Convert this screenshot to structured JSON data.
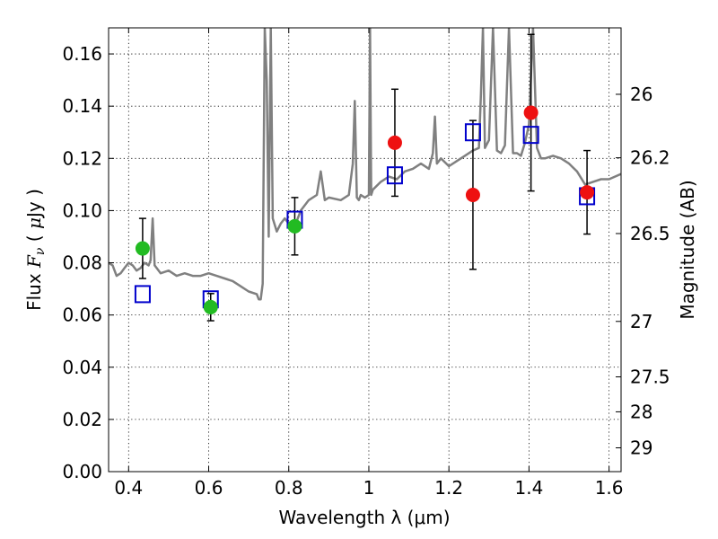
{
  "chart_data": {
    "type": "scatter",
    "title": "",
    "xlabel": "Wavelength  λ (μm)",
    "ylabel_parts": [
      "Flux  ",
      "F",
      "ν",
      "  ( ",
      "μ",
      "Jy )"
    ],
    "y2label": "Magnitude (AB)",
    "xlim": [
      0.35,
      1.63
    ],
    "ylim": [
      0.0,
      0.17
    ],
    "grid": true,
    "x_ticks": [
      {
        "value": 0.4,
        "label": "0.4"
      },
      {
        "value": 0.6,
        "label": "0.6"
      },
      {
        "value": 0.8,
        "label": "0.8"
      },
      {
        "value": 1.0,
        "label": "1"
      },
      {
        "value": 1.2,
        "label": "1.2"
      },
      {
        "value": 1.4,
        "label": "1.4"
      },
      {
        "value": 1.6,
        "label": "1.6"
      }
    ],
    "y_ticks": [
      {
        "value": 0.0,
        "label": "0.00"
      },
      {
        "value": 0.02,
        "label": "0.02"
      },
      {
        "value": 0.04,
        "label": "0.04"
      },
      {
        "value": 0.06,
        "label": "0.06"
      },
      {
        "value": 0.08,
        "label": "0.08"
      },
      {
        "value": 0.1,
        "label": "0.10"
      },
      {
        "value": 0.12,
        "label": "0.12"
      },
      {
        "value": 0.14,
        "label": "0.14"
      },
      {
        "value": 0.16,
        "label": "0.16"
      }
    ],
    "y2_ticks": [
      {
        "value": 26.0,
        "label": "26"
      },
      {
        "value": 26.2,
        "label": "26.2"
      },
      {
        "value": 26.5,
        "label": "26.5"
      },
      {
        "value": 27.0,
        "label": "27"
      },
      {
        "value": 27.5,
        "label": "27.5"
      },
      {
        "value": 28.0,
        "label": "28"
      },
      {
        "value": 29.0,
        "label": "29"
      }
    ],
    "colors": {
      "spectrum": "#808080",
      "observed_green": "#22bb22",
      "observed_red": "#ee1111",
      "model": "#0000cc",
      "errorbar": "#000000"
    },
    "spectrum": {
      "x": [
        0.35,
        0.36,
        0.37,
        0.38,
        0.39,
        0.4,
        0.41,
        0.42,
        0.43,
        0.44,
        0.45,
        0.455,
        0.46,
        0.465,
        0.47,
        0.48,
        0.5,
        0.52,
        0.54,
        0.56,
        0.58,
        0.6,
        0.62,
        0.64,
        0.66,
        0.68,
        0.7,
        0.72,
        0.725,
        0.73,
        0.735,
        0.74,
        0.745,
        0.75,
        0.755,
        0.76,
        0.77,
        0.78,
        0.79,
        0.8,
        0.81,
        0.82,
        0.83,
        0.85,
        0.87,
        0.88,
        0.89,
        0.9,
        0.93,
        0.95,
        0.96,
        0.965,
        0.97,
        0.975,
        0.98,
        0.99,
        1.0,
        1.003,
        1.006,
        1.01,
        1.03,
        1.05,
        1.07,
        1.09,
        1.11,
        1.13,
        1.15,
        1.16,
        1.165,
        1.17,
        1.18,
        1.2,
        1.22,
        1.24,
        1.26,
        1.275,
        1.28,
        1.285,
        1.29,
        1.3,
        1.31,
        1.32,
        1.33,
        1.34,
        1.35,
        1.36,
        1.37,
        1.38,
        1.39,
        1.4,
        1.41,
        1.42,
        1.43,
        1.44,
        1.46,
        1.48,
        1.5,
        1.52,
        1.54,
        1.56,
        1.58,
        1.6,
        1.63
      ],
      "y": [
        0.08,
        0.079,
        0.075,
        0.076,
        0.078,
        0.08,
        0.079,
        0.077,
        0.078,
        0.08,
        0.079,
        0.081,
        0.097,
        0.079,
        0.078,
        0.076,
        0.077,
        0.075,
        0.076,
        0.075,
        0.075,
        0.076,
        0.075,
        0.074,
        0.073,
        0.071,
        0.069,
        0.068,
        0.066,
        0.066,
        0.072,
        0.17,
        0.15,
        0.09,
        0.17,
        0.097,
        0.092,
        0.095,
        0.097,
        0.095,
        0.094,
        0.096,
        0.1,
        0.104,
        0.106,
        0.115,
        0.104,
        0.105,
        0.104,
        0.106,
        0.118,
        0.142,
        0.105,
        0.104,
        0.106,
        0.105,
        0.106,
        0.17,
        0.106,
        0.108,
        0.111,
        0.113,
        0.112,
        0.115,
        0.116,
        0.118,
        0.116,
        0.122,
        0.136,
        0.118,
        0.12,
        0.117,
        0.119,
        0.121,
        0.123,
        0.124,
        0.145,
        0.17,
        0.124,
        0.127,
        0.17,
        0.123,
        0.122,
        0.125,
        0.17,
        0.122,
        0.122,
        0.121,
        0.126,
        0.133,
        0.17,
        0.124,
        0.12,
        0.12,
        0.121,
        0.12,
        0.118,
        0.115,
        0.11,
        0.111,
        0.112,
        0.112,
        0.114
      ]
    },
    "observed_green": [
      {
        "x": 0.435,
        "y": 0.0855,
        "yerr": 0.0115
      },
      {
        "x": 0.605,
        "y": 0.063,
        "yerr": 0.0052
      },
      {
        "x": 0.815,
        "y": 0.094,
        "yerr": 0.011
      }
    ],
    "observed_red": [
      {
        "x": 1.065,
        "y": 0.126,
        "yerr": 0.0205
      },
      {
        "x": 1.26,
        "y": 0.106,
        "yerr": 0.0285
      },
      {
        "x": 1.405,
        "y": 0.1375,
        "yerr": 0.03
      },
      {
        "x": 1.545,
        "y": 0.107,
        "yerr": 0.016
      }
    ],
    "model": [
      {
        "x": 0.435,
        "y": 0.068
      },
      {
        "x": 0.605,
        "y": 0.066
      },
      {
        "x": 0.815,
        "y": 0.0965
      },
      {
        "x": 1.065,
        "y": 0.1135
      },
      {
        "x": 1.26,
        "y": 0.13
      },
      {
        "x": 1.405,
        "y": 0.129
      },
      {
        "x": 1.545,
        "y": 0.1055
      }
    ]
  }
}
